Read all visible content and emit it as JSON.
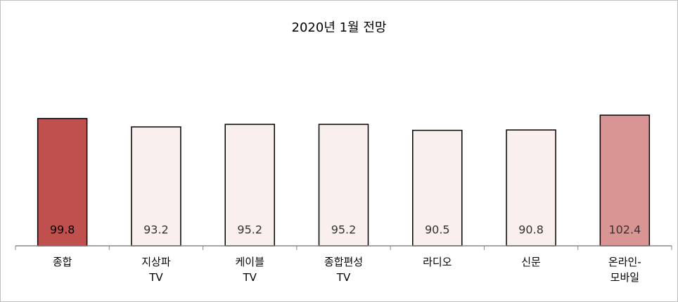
{
  "chart_data": {
    "type": "bar",
    "title": "2020년 1월 전망",
    "categories": [
      "종합",
      "지상파\nTV",
      "케이블\nTV",
      "종합편성\nTV",
      "라디오",
      "신문",
      "온라인-\n모바일"
    ],
    "values": [
      99.8,
      93.2,
      95.2,
      95.2,
      90.5,
      90.8,
      102.4
    ],
    "colors": [
      "#c0504d",
      "#f9efed",
      "#f9efed",
      "#f9efed",
      "#f9efed",
      "#f9efed",
      "#d99594"
    ],
    "ylim": [
      0,
      120
    ]
  }
}
